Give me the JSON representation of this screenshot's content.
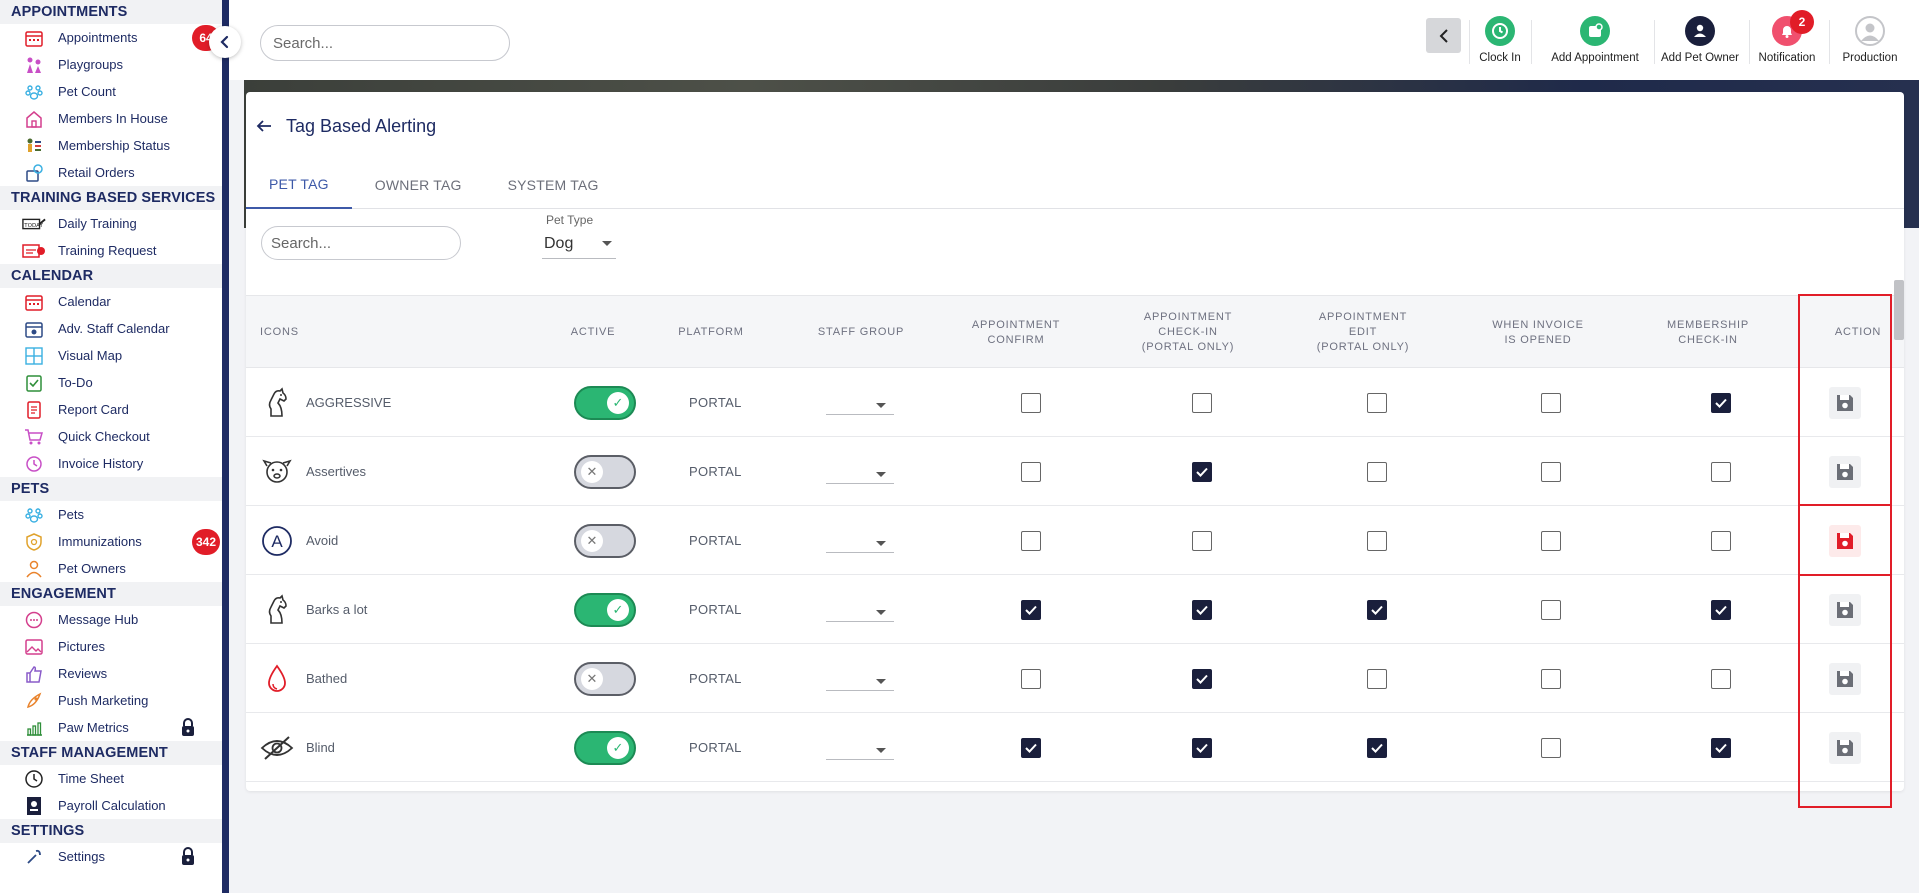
{
  "sidebar": {
    "sections": [
      {
        "title": "APPOINTMENTS",
        "items": [
          {
            "label": "Appointments",
            "icon": "calendar-icon",
            "badge": "64"
          },
          {
            "label": "Playgroups",
            "icon": "playgroups-icon"
          },
          {
            "label": "Pet Count",
            "icon": "paw-icon"
          },
          {
            "label": "Members In House",
            "icon": "house-icon"
          },
          {
            "label": "Membership Status",
            "icon": "membership-icon"
          },
          {
            "label": "Retail Orders",
            "icon": "retail-icon"
          }
        ]
      },
      {
        "title": "TRAINING BASED SERVICES",
        "items": [
          {
            "label": "Daily Training",
            "icon": "training-icon"
          },
          {
            "label": "Training Request",
            "icon": "training-request-icon"
          }
        ]
      },
      {
        "title": "CALENDAR",
        "items": [
          {
            "label": "Calendar",
            "icon": "calendar-icon"
          },
          {
            "label": "Adv. Staff Calendar",
            "icon": "staff-calendar-icon"
          },
          {
            "label": "Visual Map",
            "icon": "grid-icon"
          },
          {
            "label": "To-Do",
            "icon": "todo-icon"
          },
          {
            "label": "Report Card",
            "icon": "report-card-icon"
          },
          {
            "label": "Quick Checkout",
            "icon": "cart-icon"
          },
          {
            "label": "Invoice History",
            "icon": "invoice-icon"
          }
        ]
      },
      {
        "title": "PETS",
        "items": [
          {
            "label": "Pets",
            "icon": "paw-icon"
          },
          {
            "label": "Immunizations",
            "icon": "shield-icon",
            "badge": "342"
          },
          {
            "label": "Pet Owners",
            "icon": "user-icon"
          }
        ]
      },
      {
        "title": "ENGAGEMENT",
        "items": [
          {
            "label": "Message Hub",
            "icon": "chat-icon"
          },
          {
            "label": "Pictures",
            "icon": "image-icon"
          },
          {
            "label": "Reviews",
            "icon": "thumbs-up-icon"
          },
          {
            "label": "Push Marketing",
            "icon": "rocket-icon"
          },
          {
            "label": "Paw Metrics",
            "icon": "chart-icon",
            "locked": true
          }
        ]
      },
      {
        "title": "STAFF MANAGEMENT",
        "items": [
          {
            "label": "Time Sheet",
            "icon": "timesheet-icon"
          },
          {
            "label": "Payroll Calculation",
            "icon": "payroll-icon"
          }
        ]
      },
      {
        "title": "SETTINGS",
        "items": [
          {
            "label": "Settings",
            "icon": "wrench-icon",
            "locked": true
          }
        ]
      }
    ]
  },
  "topbar": {
    "search_placeholder": "Search...",
    "actions": [
      {
        "label": "Clock In",
        "icon": "clock-icon",
        "color": "#2bb673"
      },
      {
        "label": "Add Appointment",
        "icon": "add-appointment-icon",
        "color": "#2bb673"
      },
      {
        "label": "Add Pet Owner",
        "icon": "add-user-icon",
        "color": "#1a1f3c"
      },
      {
        "label": "Notification",
        "icon": "bell-icon",
        "color": "#f0506e",
        "badge": "2"
      },
      {
        "label": "Production",
        "icon": "avatar-icon",
        "color": "#bdbec2"
      }
    ]
  },
  "page": {
    "title": "Tag Based Alerting",
    "tabs": [
      "PET TAG",
      "OWNER TAG",
      "SYSTEM TAG"
    ],
    "active_tab": 0,
    "filter": {
      "search_placeholder": "Search...",
      "pet_type_label": "Pet Type",
      "pet_type_value": "Dog"
    }
  },
  "table": {
    "columns": [
      "ICONS",
      "ACTIVE",
      "PLATFORM",
      "STAFF GROUP",
      "APPOINTMENT\nCONFIRM",
      "APPOINTMENT\nCHECK-IN\n(PORTAL ONLY)",
      "APPOINTMENT\nEDIT\n(PORTAL ONLY)",
      "WHEN INVOICE\nIS OPENED",
      "MEMBERSHIP\nCHECK-IN",
      "ACTION"
    ],
    "rows": [
      {
        "name": "AGGRESSIVE",
        "icon": "horse-icon",
        "active": true,
        "platform": "PORTAL",
        "checks": [
          false,
          false,
          false,
          false,
          true
        ],
        "save_highlight": false
      },
      {
        "name": "Assertives",
        "icon": "dog-face-icon",
        "active": false,
        "platform": "PORTAL",
        "checks": [
          false,
          true,
          false,
          false,
          false
        ],
        "save_highlight": false
      },
      {
        "name": "Avoid",
        "icon": "letter-a-icon",
        "active": false,
        "platform": "PORTAL",
        "checks": [
          false,
          false,
          false,
          false,
          false
        ],
        "save_highlight": true
      },
      {
        "name": "Barks a lot",
        "icon": "horse-icon",
        "active": true,
        "platform": "PORTAL",
        "checks": [
          true,
          true,
          true,
          false,
          true
        ],
        "save_highlight": false
      },
      {
        "name": "Bathed",
        "icon": "drop-icon",
        "active": false,
        "platform": "PORTAL",
        "checks": [
          false,
          true,
          false,
          false,
          false
        ],
        "save_highlight": false
      },
      {
        "name": "Blind",
        "icon": "eye-slash-icon",
        "active": true,
        "platform": "PORTAL",
        "checks": [
          true,
          true,
          true,
          false,
          true
        ],
        "save_highlight": false
      }
    ]
  },
  "colors": {
    "navy": "#1e2b63",
    "accent": "#3d59a8",
    "green": "#2bb673",
    "red": "#e11d28"
  }
}
